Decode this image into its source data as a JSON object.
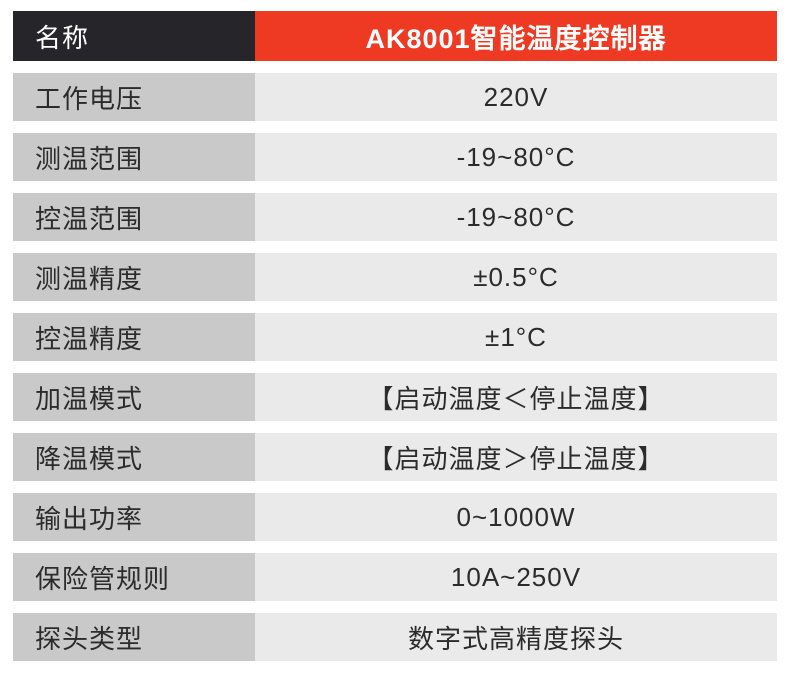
{
  "table": {
    "header": {
      "label": "名称",
      "value": "AK8001智能温度控制器"
    },
    "rows": [
      {
        "label": "工作电压",
        "value": "220V"
      },
      {
        "label": "测温范围",
        "value": "-19~80°C"
      },
      {
        "label": "控温范围",
        "value": "-19~80°C"
      },
      {
        "label": "测温精度",
        "value": "±0.5°C"
      },
      {
        "label": "控温精度",
        "value": "±1°C"
      },
      {
        "label": "加温模式",
        "value": "【启动温度＜停止温度】"
      },
      {
        "label": "降温模式",
        "value": "【启动温度＞停止温度】"
      },
      {
        "label": "输出功率",
        "value": "0~1000W"
      },
      {
        "label": "保险管规则",
        "value": "10A~250V"
      },
      {
        "label": "探头类型",
        "value": "数字式高精度探头"
      }
    ],
    "colors": {
      "header_label_bg": "#26262a",
      "header_value_bg": "#ee3a22",
      "label_bg": "#c9c9c9",
      "value_bg": "#eaeaea",
      "header_text": "#ffffff",
      "body_text": "#2b2b2b"
    }
  }
}
